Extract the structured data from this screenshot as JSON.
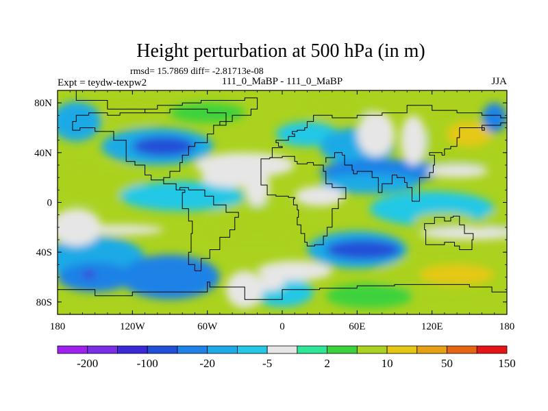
{
  "chart_data": {
    "type": "heatmap",
    "title": "Height perturbation at 500 hPa (in m)",
    "stats": "rmsd= 15.7869 diff= -2.81713e-08",
    "left_label": "Expt = teydw-texpw2",
    "center_label": "111_0_MaBP - 111_0_MaBP",
    "right_label": "JJA",
    "x_ticks": [
      {
        "value": -180,
        "label": "180"
      },
      {
        "value": -120,
        "label": "120W"
      },
      {
        "value": -60,
        "label": "60W"
      },
      {
        "value": 0,
        "label": "0"
      },
      {
        "value": 60,
        "label": "60E"
      },
      {
        "value": 120,
        "label": "120E"
      },
      {
        "value": 180,
        "label": "180"
      }
    ],
    "y_ticks": [
      {
        "value": 80,
        "label": "80N"
      },
      {
        "value": 40,
        "label": "40N"
      },
      {
        "value": 0,
        "label": "0"
      },
      {
        "value": -40,
        "label": "40S"
      },
      {
        "value": -80,
        "label": "80S"
      }
    ],
    "xlim": [
      -180,
      180
    ],
    "ylim": [
      -90,
      90
    ],
    "colorbar": {
      "colors": [
        "#a020f0",
        "#7a2ee8",
        "#3c28d8",
        "#2050d8",
        "#1e82e6",
        "#1eaae6",
        "#23c8e6",
        "#e6e6e6",
        "#2de696",
        "#3cd23c",
        "#aad21e",
        "#e6c814",
        "#e6a014",
        "#e66414",
        "#e61414"
      ],
      "labels": [
        "-200",
        "-100",
        "-20",
        "-5",
        "2",
        "10",
        "50",
        "150"
      ]
    },
    "blobs": [
      {
        "lon": -170,
        "lat": 68,
        "rlon": 14,
        "rlat": 10,
        "level": 4
      },
      {
        "lon": -165,
        "lat": 65,
        "rlon": 20,
        "rlat": 16,
        "level": 5
      },
      {
        "lon": -120,
        "lat": 70,
        "rlon": 22,
        "rlat": 8,
        "level": 10
      },
      {
        "lon": -60,
        "lat": 72,
        "rlon": 30,
        "rlat": 8,
        "level": 9
      },
      {
        "lon": -100,
        "lat": 45,
        "rlon": 45,
        "rlat": 15,
        "level": 5
      },
      {
        "lon": -95,
        "lat": 45,
        "rlon": 25,
        "rlat": 8,
        "level": 3
      },
      {
        "lon": -150,
        "lat": 15,
        "rlon": 40,
        "rlat": 15,
        "level": 10
      },
      {
        "lon": -80,
        "lat": 5,
        "rlon": 50,
        "rlat": 12,
        "level": 6
      },
      {
        "lon": -30,
        "lat": 30,
        "rlon": 40,
        "rlat": 10,
        "level": 7
      },
      {
        "lon": 20,
        "lat": 55,
        "rlon": 25,
        "rlat": 10,
        "level": 6
      },
      {
        "lon": 45,
        "lat": 75,
        "rlon": 25,
        "rlat": 8,
        "level": 10
      },
      {
        "lon": 60,
        "lat": 45,
        "rlon": 30,
        "rlat": 15,
        "level": 5
      },
      {
        "lon": 80,
        "lat": 25,
        "rlon": 50,
        "rlat": 10,
        "level": 4
      },
      {
        "lon": 70,
        "lat": 15,
        "rlon": 40,
        "rlat": 8,
        "level": 5
      },
      {
        "lon": 140,
        "lat": 45,
        "rlon": 30,
        "rlat": 20,
        "level": 10
      },
      {
        "lon": 150,
        "lat": 55,
        "rlon": 18,
        "rlat": 10,
        "level": 11
      },
      {
        "lon": 170,
        "lat": 68,
        "rlon": 10,
        "rlat": 12,
        "level": 4
      },
      {
        "lon": 120,
        "lat": -5,
        "rlon": 50,
        "rlat": 14,
        "level": 6
      },
      {
        "lon": 130,
        "lat": -15,
        "rlon": 25,
        "rlat": 7,
        "level": 10
      },
      {
        "lon": -20,
        "lat": -15,
        "rlon": 40,
        "rlat": 15,
        "level": 10
      },
      {
        "lon": 60,
        "lat": -38,
        "rlon": 40,
        "rlat": 15,
        "level": 5
      },
      {
        "lon": 65,
        "lat": -38,
        "rlon": 30,
        "rlat": 8,
        "level": 3
      },
      {
        "lon": -150,
        "lat": -45,
        "rlon": 40,
        "rlat": 18,
        "level": 5
      },
      {
        "lon": -150,
        "lat": -60,
        "rlon": 30,
        "rlat": 12,
        "level": 4
      },
      {
        "lon": -155,
        "lat": -58,
        "rlon": 5,
        "rlat": 3,
        "level": 2
      },
      {
        "lon": -90,
        "lat": -60,
        "rlon": 40,
        "rlat": 18,
        "level": 4
      },
      {
        "lon": 120,
        "lat": -60,
        "rlon": 45,
        "rlat": 15,
        "level": 10
      },
      {
        "lon": 140,
        "lat": -58,
        "rlon": 30,
        "rlat": 8,
        "level": 11
      },
      {
        "lon": 70,
        "lat": -75,
        "rlon": 35,
        "rlat": 10,
        "level": 9
      },
      {
        "lon": 0,
        "lat": -72,
        "rlon": 25,
        "rlat": 12,
        "level": 6
      },
      {
        "lon": -10,
        "lat": -65,
        "rlon": 12,
        "rlat": 6,
        "level": 7
      },
      {
        "lon": 175,
        "lat": -15,
        "rlon": 15,
        "rlat": 8,
        "level": 10
      }
    ],
    "white_bands": [
      {
        "lon": -165,
        "lat": -20,
        "rlon": 20,
        "rlat": 15
      },
      {
        "lon": -130,
        "lat": -22,
        "rlon": 35,
        "rlat": 4
      },
      {
        "lon": -40,
        "lat": 20,
        "rlon": 25,
        "rlat": 8
      },
      {
        "lon": -20,
        "lat": 12,
        "rlon": 10,
        "rlat": 15
      },
      {
        "lon": 30,
        "lat": 5,
        "rlon": 20,
        "rlat": 8
      },
      {
        "lon": 75,
        "lat": 55,
        "rlon": 15,
        "rlat": 18
      },
      {
        "lon": 105,
        "lat": 50,
        "rlon": 10,
        "rlat": 20
      },
      {
        "lon": 150,
        "lat": -25,
        "rlon": 40,
        "rlat": 5
      },
      {
        "lon": 10,
        "lat": -55,
        "rlon": 30,
        "rlat": 8
      },
      {
        "lon": -30,
        "lat": -70,
        "rlon": 15,
        "rlat": 15
      },
      {
        "lon": 140,
        "lat": 25,
        "rlon": 25,
        "rlat": 5
      }
    ],
    "land_outlines": [
      [
        [
          -165,
          90
        ],
        [
          -165,
          82
        ],
        [
          -140,
          82
        ],
        [
          -140,
          75
        ],
        [
          -120,
          75
        ],
        [
          -110,
          72
        ],
        [
          -90,
          75
        ],
        [
          -60,
          72
        ],
        [
          -45,
          62
        ],
        [
          -55,
          55
        ],
        [
          -60,
          48
        ],
        [
          -70,
          45
        ],
        [
          -75,
          38
        ],
        [
          -80,
          32
        ],
        [
          -82,
          25
        ],
        [
          -90,
          20
        ],
        [
          -95,
          15
        ],
        [
          -85,
          10
        ],
        [
          -78,
          8
        ],
        [
          -80,
          3
        ],
        [
          -80,
          -5
        ],
        [
          -75,
          -15
        ],
        [
          -72,
          -25
        ],
        [
          -73,
          -40
        ],
        [
          -75,
          -50
        ],
        [
          -70,
          -55
        ],
        [
          -65,
          -55
        ],
        [
          -65,
          -45
        ],
        [
          -58,
          -38
        ],
        [
          -50,
          -28
        ],
        [
          -42,
          -22
        ],
        [
          -38,
          -12
        ],
        [
          -35,
          -8
        ],
        [
          -45,
          -2
        ],
        [
          -55,
          5
        ],
        [
          -62,
          10
        ],
        [
          -75,
          12
        ],
        [
          -82,
          10
        ],
        [
          -85,
          15
        ],
        [
          -95,
          18
        ],
        [
          -105,
          22
        ],
        [
          -110,
          30
        ],
        [
          -118,
          33
        ],
        [
          -125,
          40
        ],
        [
          -125,
          50
        ],
        [
          -135,
          57
        ],
        [
          -150,
          60
        ],
        [
          -162,
          58
        ],
        [
          -168,
          65
        ],
        [
          -165,
          70
        ],
        [
          -155,
          72
        ],
        [
          -140,
          70
        ],
        [
          -130,
          72
        ],
        [
          -110,
          75
        ],
        [
          -100,
          78
        ],
        [
          -80,
          80
        ],
        [
          -65,
          82
        ],
        [
          -50,
          82
        ],
        [
          -30,
          84
        ],
        [
          -20,
          82
        ],
        [
          -20,
          75
        ],
        [
          -25,
          70
        ],
        [
          -40,
          65
        ],
        [
          -50,
          62
        ],
        [
          -45,
          62
        ]
      ],
      [
        [
          -10,
          36
        ],
        [
          -8,
          44
        ],
        [
          0,
          45
        ],
        [
          -3,
          48
        ],
        [
          -5,
          50
        ],
        [
          5,
          53
        ],
        [
          10,
          55
        ],
        [
          8,
          57
        ],
        [
          12,
          58
        ],
        [
          18,
          60
        ],
        [
          20,
          65
        ],
        [
          25,
          70
        ],
        [
          40,
          68
        ],
        [
          60,
          70
        ],
        [
          80,
          72
        ],
        [
          100,
          78
        ],
        [
          120,
          74
        ],
        [
          140,
          72
        ],
        [
          160,
          70
        ],
        [
          175,
          68
        ],
        [
          180,
          66
        ]
      ],
      [
        [
          -17,
          20
        ],
        [
          -17,
          14
        ],
        [
          -12,
          6
        ],
        [
          -5,
          5
        ],
        [
          5,
          4
        ],
        [
          10,
          3
        ],
        [
          9,
          -2
        ],
        [
          12,
          -6
        ],
        [
          13,
          -12
        ],
        [
          12,
          -18
        ],
        [
          15,
          -25
        ],
        [
          18,
          -32
        ],
        [
          20,
          -35
        ],
        [
          26,
          -34
        ],
        [
          33,
          -27
        ],
        [
          36,
          -20
        ],
        [
          40,
          -15
        ],
        [
          40,
          -5
        ],
        [
          45,
          3
        ],
        [
          51,
          12
        ],
        [
          43,
          12
        ],
        [
          40,
          15
        ],
        [
          35,
          25
        ],
        [
          33,
          30
        ],
        [
          25,
          32
        ],
        [
          20,
          31
        ],
        [
          12,
          33
        ],
        [
          10,
          37
        ],
        [
          0,
          36
        ],
        [
          -10,
          35
        ],
        [
          -17,
          28
        ],
        [
          -17,
          20
        ]
      ],
      [
        [
          35,
          32
        ],
        [
          35,
          36
        ],
        [
          42,
          40
        ],
        [
          48,
          38
        ],
        [
          50,
          30
        ],
        [
          56,
          26
        ],
        [
          57,
          23
        ],
        [
          60,
          25
        ],
        [
          66,
          25
        ],
        [
          72,
          20
        ],
        [
          77,
          8
        ],
        [
          80,
          15
        ],
        [
          88,
          22
        ],
        [
          92,
          20
        ],
        [
          98,
          16
        ],
        [
          100,
          12
        ],
        [
          104,
          8
        ],
        [
          104,
          1
        ],
        [
          110,
          20
        ],
        [
          118,
          24
        ],
        [
          121,
          30
        ],
        [
          122,
          38
        ],
        [
          118,
          40
        ],
        [
          128,
          38
        ],
        [
          130,
          43
        ],
        [
          135,
          45
        ],
        [
          140,
          52
        ],
        [
          142,
          60
        ],
        [
          155,
          60
        ],
        [
          162,
          58
        ],
        [
          160,
          62
        ],
        [
          175,
          64
        ],
        [
          180,
          66
        ]
      ],
      [
        [
          114,
          -22
        ],
        [
          115,
          -34
        ],
        [
          122,
          -34
        ],
        [
          130,
          -32
        ],
        [
          138,
          -35
        ],
        [
          142,
          -38
        ],
        [
          148,
          -38
        ],
        [
          152,
          -30
        ],
        [
          153,
          -25
        ],
        [
          146,
          -18
        ],
        [
          142,
          -11
        ],
        [
          137,
          -12
        ],
        [
          135,
          -15
        ],
        [
          130,
          -12
        ],
        [
          122,
          -17
        ],
        [
          114,
          -22
        ]
      ],
      [
        [
          -180,
          -70
        ],
        [
          -150,
          -75
        ],
        [
          -120,
          -72
        ],
        [
          -90,
          -72
        ],
        [
          -60,
          -64
        ],
        [
          -58,
          -68
        ],
        [
          -30,
          -78
        ],
        [
          0,
          -70
        ],
        [
          30,
          -69
        ],
        [
          60,
          -67
        ],
        [
          90,
          -66
        ],
        [
          120,
          -66
        ],
        [
          150,
          -68
        ],
        [
          168,
          -72
        ],
        [
          180,
          -78
        ]
      ]
    ]
  }
}
